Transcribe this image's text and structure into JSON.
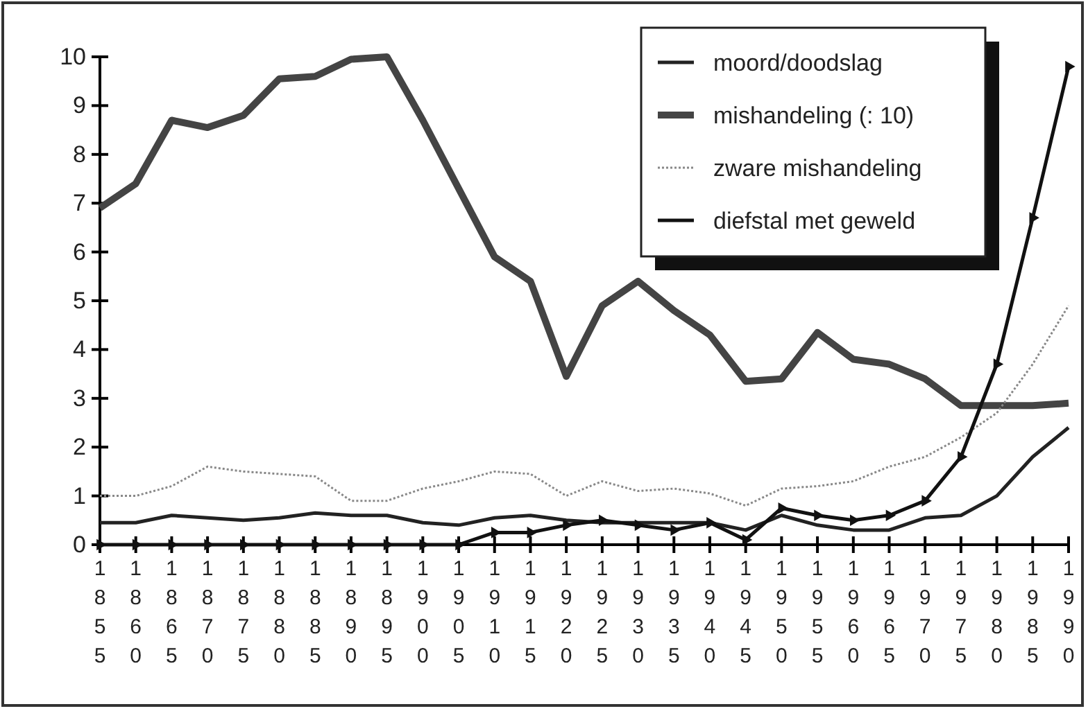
{
  "chart_data": {
    "type": "line",
    "categories": [
      "1855",
      "1860",
      "1865",
      "1870",
      "1875",
      "1880",
      "1885",
      "1890",
      "1895",
      "1900",
      "1905",
      "1910",
      "1915",
      "1920",
      "1925",
      "1930",
      "1935",
      "1940",
      "1945",
      "1950",
      "1955",
      "1960",
      "1965",
      "1970",
      "1975",
      "1980",
      "1985",
      "1990"
    ],
    "series": [
      {
        "name": "moord/doodslag",
        "color": "#222222",
        "line_style": "solid",
        "values": [
          0.45,
          0.45,
          0.6,
          0.55,
          0.5,
          0.55,
          0.65,
          0.6,
          0.6,
          0.45,
          0.4,
          0.55,
          0.6,
          0.5,
          0.45,
          0.45,
          0.45,
          0.45,
          0.3,
          0.6,
          0.4,
          0.3,
          0.3,
          0.55,
          0.6,
          1.0,
          1.8,
          2.4
        ]
      },
      {
        "name": "mishandeling (: 10)",
        "color": "#444444",
        "line_style": "solid",
        "values": [
          6.9,
          7.4,
          8.7,
          8.55,
          8.8,
          9.55,
          9.6,
          9.95,
          10.0,
          8.7,
          7.3,
          5.9,
          5.4,
          3.45,
          4.9,
          5.4,
          4.8,
          4.3,
          3.35,
          3.4,
          4.35,
          3.8,
          3.7,
          3.4,
          2.85,
          2.85,
          2.85,
          2.9
        ]
      },
      {
        "name": "zware mishandeling",
        "color": "#888888",
        "line_style": "dotted",
        "values": [
          1.0,
          1.0,
          1.2,
          1.6,
          1.5,
          1.45,
          1.4,
          0.9,
          0.9,
          1.15,
          1.3,
          1.5,
          1.45,
          1.0,
          1.3,
          1.1,
          1.15,
          1.05,
          0.8,
          1.15,
          1.2,
          1.3,
          1.6,
          1.8,
          2.2,
          2.7,
          3.7,
          4.9
        ]
      },
      {
        "name": "diefstal met geweld",
        "color": "#111111",
        "line_style": "solid",
        "marker": "triangle",
        "values": [
          0,
          0,
          0,
          0,
          0,
          0,
          0,
          0,
          0,
          0,
          0,
          0.25,
          0.25,
          0.4,
          0.5,
          0.4,
          0.3,
          0.45,
          0.1,
          0.75,
          0.6,
          0.5,
          0.6,
          0.9,
          1.8,
          3.7,
          6.7,
          9.8
        ]
      }
    ],
    "ylim": [
      0,
      10
    ],
    "yticks": [
      0,
      1,
      2,
      3,
      4,
      5,
      6,
      7,
      8,
      9,
      10
    ],
    "grid": false,
    "legend": "top right"
  }
}
